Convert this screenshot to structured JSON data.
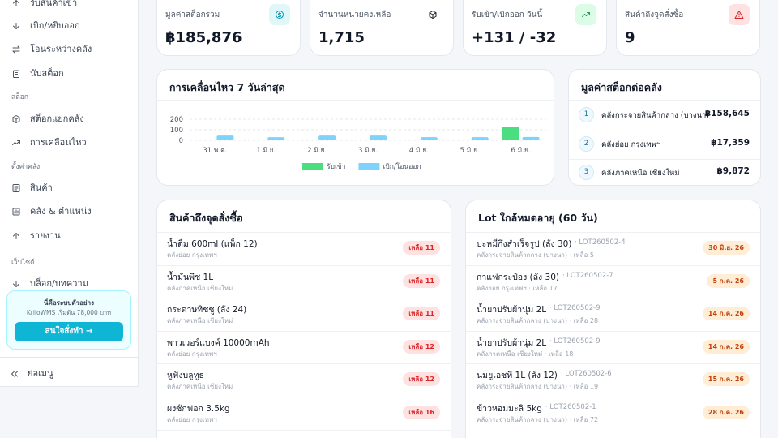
{
  "sidebar": {
    "nav_top": [
      "รับสินค้าเข้า",
      "เบิก/หยิบออก",
      "โอนระหว่างคลัง",
      "นับสต็อก"
    ],
    "sections": [
      {
        "heading": "สต็อก",
        "items": [
          "สต็อกแยกคลัง",
          "การเคลื่อนไหว"
        ]
      },
      {
        "heading": "ตั้งค่าคลัง",
        "items": [
          "สินค้า",
          "คลัง & ตำแหน่ง",
          "รายงาน"
        ]
      },
      {
        "heading": "เว็บไซต์",
        "items": [
          "บล็อก/บทความ"
        ]
      }
    ],
    "promo": {
      "title": "นี่คือระบบตัวอย่าง",
      "text": "KriloWMS เริ่มต้น 78,000 บาท",
      "button": "สนใจสั่งทำ →"
    },
    "collapse": "ย่อเมนู"
  },
  "kpis": [
    {
      "label": "มูลค่าสต็อกรวม",
      "value": "฿185,876"
    },
    {
      "label": "จำนวนหน่วยคงเหลือ",
      "value": "1,715"
    },
    {
      "label": "รับเข้า/เบิกออก วันนี้",
      "value": "+131 / -32"
    },
    {
      "label": "สินค้าถึงจุดสั่งซื้อ",
      "value": "9"
    }
  ],
  "chart_data": {
    "type": "bar",
    "title": "การเคลื่อนไหว 7 วันล่าสุด",
    "categories": [
      "31 พ.ค.",
      "1 มิ.ย.",
      "2 มิ.ย.",
      "3 มิ.ย.",
      "4 มิ.ย.",
      "5 มิ.ย.",
      "6 มิ.ย."
    ],
    "series": [
      {
        "name": "รับเข้า",
        "color": "#4ade80",
        "values": [
          0,
          0,
          0,
          0,
          0,
          0,
          131
        ]
      },
      {
        "name": "เบิก/โอนออก",
        "color": "#7dd3fc",
        "values": [
          45,
          30,
          45,
          45,
          30,
          30,
          32
        ]
      }
    ],
    "ylim": [
      0,
      200
    ],
    "yticks": [
      0,
      100,
      200
    ],
    "grid": true,
    "legend": "bottom"
  },
  "warehouse_value": {
    "title": "มูลค่าสต็อกต่อคลัง",
    "rows": [
      {
        "rank": "1",
        "name": "คลังกระจายสินค้ากลาง (บางนา)",
        "value": "฿158,645"
      },
      {
        "rank": "2",
        "name": "คลังย่อย กรุงเทพฯ",
        "value": "฿17,359"
      },
      {
        "rank": "3",
        "name": "คลังภาคเหนือ เชียงใหม่",
        "value": "฿9,872"
      }
    ]
  },
  "reorder": {
    "title": "สินค้าถึงจุดสั่งซื้อ",
    "rows": [
      {
        "name": "น้ำดื่ม 600ml (แพ็ก 12)",
        "warehouse": "คลังย่อย กรุงเทพฯ",
        "badge": "เหลือ 11"
      },
      {
        "name": "น้ำมันพืช 1L",
        "warehouse": "คลังภาคเหนือ เชียงใหม่",
        "badge": "เหลือ 11"
      },
      {
        "name": "กระดาษทิชชู (ลัง 24)",
        "warehouse": "คลังภาคเหนือ เชียงใหม่",
        "badge": "เหลือ 11"
      },
      {
        "name": "พาวเวอร์แบงค์ 10000mAh",
        "warehouse": "คลังย่อย กรุงเทพฯ",
        "badge": "เหลือ 12"
      },
      {
        "name": "หูฟังบลูทูธ",
        "warehouse": "คลังภาคเหนือ เชียงใหม่",
        "badge": "เหลือ 12"
      },
      {
        "name": "ผงซักฟอก 3.5kg",
        "warehouse": "คลังย่อย กรุงเทพฯ",
        "badge": "เหลือ 16"
      }
    ]
  },
  "lots": {
    "title": "Lot ใกล้หมดอายุ (60 วัน)",
    "rows": [
      {
        "name": "บะหมี่กึ่งสำเร็จรูป (ลัง 30)",
        "lot": "· LOT260502-4",
        "sub": "คลังกระจายสินค้ากลาง (บางนา) · เหลือ 5",
        "date": "30 มิ.ย. 26"
      },
      {
        "name": "กาแฟกระป๋อง (ลัง 30)",
        "lot": "· LOT260502-7",
        "sub": "คลังย่อย กรุงเทพฯ · เหลือ 17",
        "date": "5 ก.ค. 26"
      },
      {
        "name": "น้ำยาปรับผ้านุ่ม 2L",
        "lot": "· LOT260502-9",
        "sub": "คลังกระจายสินค้ากลาง (บางนา) · เหลือ 28",
        "date": "14 ก.ค. 26"
      },
      {
        "name": "น้ำยาปรับผ้านุ่ม 2L",
        "lot": "· LOT260502-9",
        "sub": "คลังภาคเหนือ เชียงใหม่ · เหลือ 18",
        "date": "14 ก.ค. 26"
      },
      {
        "name": "นมยูเอชที 1L (ลัง 12)",
        "lot": "· LOT260502-6",
        "sub": "คลังกระจายสินค้ากลาง (บางนา) · เหลือ 19",
        "date": "15 ก.ค. 26"
      },
      {
        "name": "ข้าวหอมมะลิ 5kg",
        "lot": "· LOT260502-1",
        "sub": "คลังกระจายสินค้ากลาง (บางนา) · เหลือ 72",
        "date": "28 ก.ค. 26"
      }
    ]
  }
}
